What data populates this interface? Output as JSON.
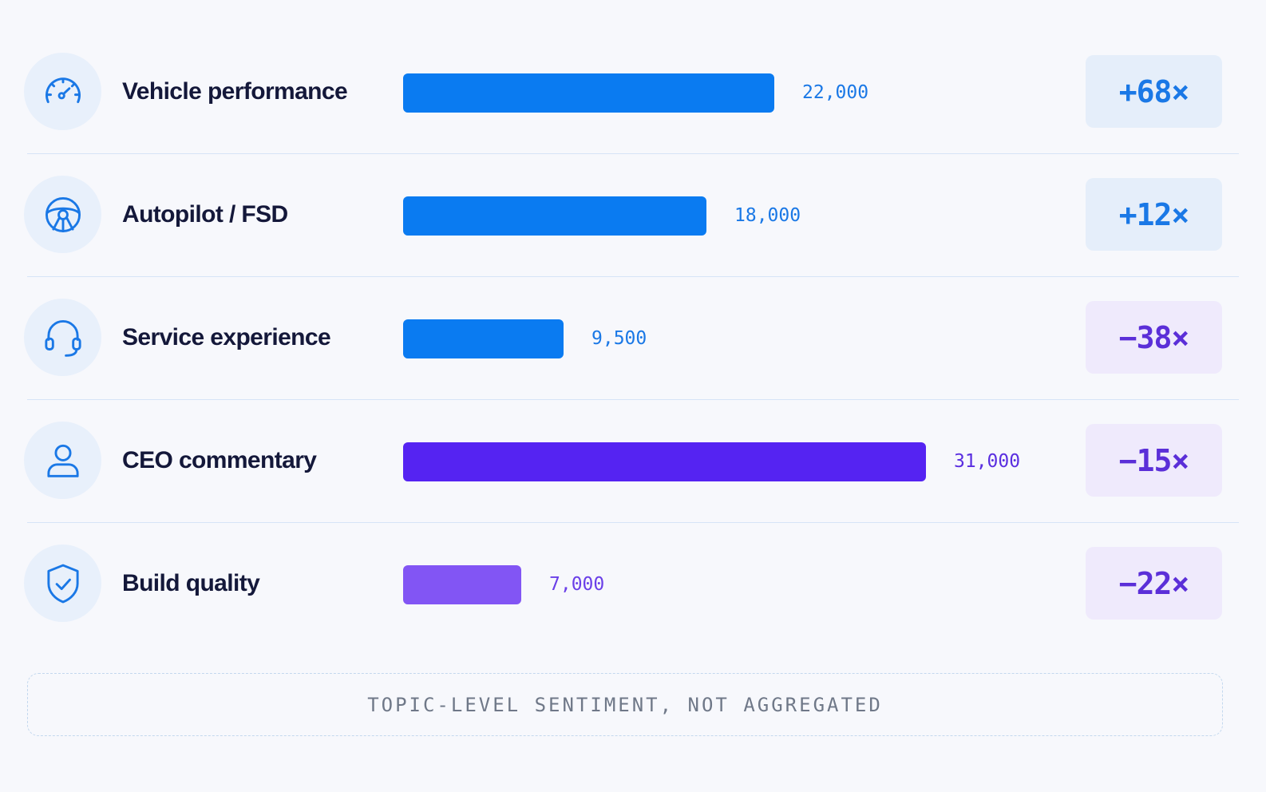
{
  "chart_data": {
    "type": "bar",
    "orientation": "horizontal",
    "categories": [
      "Vehicle performance",
      "Autopilot / FSD",
      "Service experience",
      "CEO commentary",
      "Build quality"
    ],
    "values": [
      22000,
      18000,
      9500,
      31000,
      7000
    ],
    "value_labels": [
      "22,000",
      "18,000",
      "9,500",
      "31,000",
      "7,000"
    ],
    "sentiment_labels": [
      "+68×",
      "+12×",
      "−38×",
      "−15×",
      "−22×"
    ],
    "icons": [
      "speedometer-icon",
      "steering-wheel-icon",
      "headset-icon",
      "person-icon",
      "shield-check-icon"
    ],
    "bar_colors": [
      "#0a7bf1",
      "#0a7bf1",
      "#0a7bf1",
      "#5523f2",
      "#8255f4"
    ],
    "value_label_colors": [
      "#1a78e6",
      "#1a78e6",
      "#1a78e6",
      "#5a2ee0",
      "#6a3fe8"
    ],
    "badge_backgrounds": [
      "#e5eefa",
      "#e5eefa",
      "#efeafc",
      "#efeafc",
      "#efeafc"
    ],
    "badge_text_colors": [
      "#1a78e6",
      "#1a78e6",
      "#5b2fd8",
      "#5b2fd8",
      "#5b2fd8"
    ],
    "xlim": [
      0,
      31000
    ],
    "grid": false
  },
  "footer": {
    "note": "TOPIC-LEVEL SENTIMENT, NOT AGGREGATED"
  }
}
